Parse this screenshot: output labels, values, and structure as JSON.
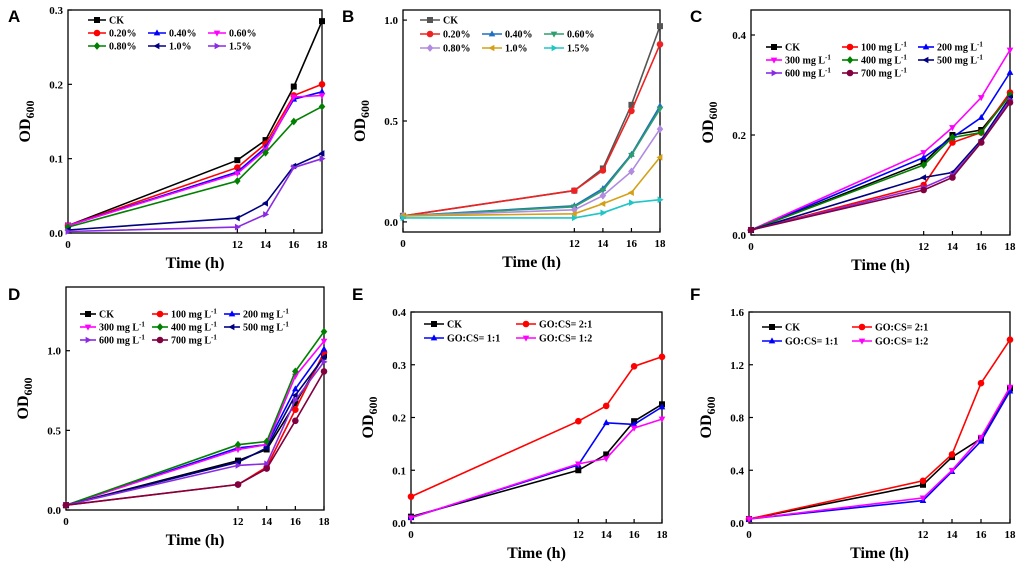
{
  "figure": {
    "panels": [
      {
        "label": "A",
        "chart_data": {
          "type": "line",
          "x": [
            0,
            12,
            14,
            16,
            18
          ],
          "xticks": [
            "0",
            "12",
            "14",
            "16",
            "18"
          ],
          "xlim": [
            0,
            18
          ],
          "ylim": [
            0,
            0.3
          ],
          "yticks": [
            0.0,
            0.1,
            0.2,
            0.3
          ],
          "ytick_labels": [
            "0.0",
            "0.1",
            "0.2",
            "0.3"
          ],
          "xlabel": "Time (h)",
          "ylabel_main": "OD",
          "ylabel_sub": "600",
          "legend_layout": [
            [
              0
            ],
            [
              1,
              2,
              3
            ],
            [
              4,
              5,
              6
            ]
          ],
          "series": [
            {
              "name": "CK",
              "color": "#000000",
              "marker": "square",
              "values": [
                0.01,
                0.098,
                0.125,
                0.197,
                0.285
              ]
            },
            {
              "name": "0.20%",
              "color": "#ff0000",
              "marker": "circle",
              "values": [
                0.01,
                0.088,
                0.12,
                0.185,
                0.2
              ]
            },
            {
              "name": "0.40%",
              "color": "#0000ff",
              "marker": "triangle-up",
              "values": [
                0.01,
                0.082,
                0.115,
                0.18,
                0.19
              ]
            },
            {
              "name": "0.60%",
              "color": "#ff00ff",
              "marker": "triangle-down",
              "values": [
                0.01,
                0.08,
                0.112,
                0.183,
                0.185
              ]
            },
            {
              "name": "0.80%",
              "color": "#008000",
              "marker": "diamond",
              "values": [
                0.008,
                0.07,
                0.108,
                0.15,
                0.17
              ]
            },
            {
              "name": "1.0%",
              "color": "#000080",
              "marker": "triangle-left",
              "values": [
                0.004,
                0.02,
                0.04,
                0.09,
                0.107
              ]
            },
            {
              "name": "1.5%",
              "color": "#8a2be2",
              "marker": "triangle-right",
              "values": [
                0.002,
                0.008,
                0.025,
                0.088,
                0.1
              ]
            }
          ]
        }
      },
      {
        "label": "B",
        "chart_data": {
          "type": "line",
          "x": [
            0,
            12,
            14,
            16,
            18
          ],
          "xticks": [
            "0",
            "12",
            "14",
            "16",
            "18"
          ],
          "xlim": [
            0,
            18
          ],
          "ylim": [
            -0.05,
            1.05
          ],
          "yticks": [
            0.0,
            0.5,
            1.0
          ],
          "ytick_labels": [
            "0.0",
            "0.5",
            "1.0"
          ],
          "xlabel": "Time (h)",
          "ylabel_main": "OD",
          "ylabel_sub": "600",
          "legend_layout": [
            [
              0
            ],
            [
              1,
              2,
              3
            ],
            [
              4,
              5,
              6
            ]
          ],
          "series": [
            {
              "name": "CK",
              "color": "#555555",
              "marker": "square",
              "values": [
                0.03,
                0.155,
                0.265,
                0.58,
                0.97
              ]
            },
            {
              "name": "0.20%",
              "color": "#ee2222",
              "marker": "circle",
              "values": [
                0.03,
                0.155,
                0.255,
                0.55,
                0.88
              ]
            },
            {
              "name": "0.40%",
              "color": "#1f6fbf",
              "marker": "triangle-up",
              "values": [
                0.03,
                0.08,
                0.165,
                0.335,
                0.575
              ]
            },
            {
              "name": "0.60%",
              "color": "#2e9e6e",
              "marker": "triangle-down",
              "values": [
                0.03,
                0.075,
                0.155,
                0.33,
                0.56
              ]
            },
            {
              "name": "0.80%",
              "color": "#b08be0",
              "marker": "diamond",
              "values": [
                0.03,
                0.06,
                0.13,
                0.25,
                0.46
              ]
            },
            {
              "name": "1.0%",
              "color": "#d4a017",
              "marker": "triangle-left",
              "values": [
                0.03,
                0.04,
                0.09,
                0.145,
                0.32
              ]
            },
            {
              "name": "1.5%",
              "color": "#20c5c5",
              "marker": "triangle-right",
              "values": [
                0.02,
                0.02,
                0.045,
                0.095,
                0.11
              ]
            }
          ]
        }
      },
      {
        "label": "C",
        "chart_data": {
          "type": "line",
          "x": [
            0,
            12,
            14,
            16,
            18
          ],
          "xticks": [
            "0",
            "12",
            "14",
            "16",
            "18"
          ],
          "xlim": [
            0,
            18
          ],
          "ylim": [
            0,
            0.45
          ],
          "yticks": [
            0.0,
            0.2,
            0.4
          ],
          "ytick_labels": [
            "0.0",
            "0.2",
            "0.4"
          ],
          "xlabel": "Time (h)",
          "ylabel_main": "OD",
          "ylabel_sub": "600",
          "legend_layout": [
            [
              0,
              1,
              2
            ],
            [
              3,
              4,
              5
            ],
            [
              6,
              7
            ]
          ],
          "series": [
            {
              "name": "CK",
              "color": "#000000",
              "marker": "square",
              "values": [
                0.01,
                0.145,
                0.2,
                0.21,
                0.28
              ]
            },
            {
              "name": "100 mg L-1",
              "color": "#ff0000",
              "marker": "circle",
              "values": [
                0.01,
                0.1,
                0.185,
                0.205,
                0.285
              ]
            },
            {
              "name": "200 mg L-1",
              "color": "#0000ff",
              "marker": "triangle-up",
              "values": [
                0.01,
                0.155,
                0.195,
                0.235,
                0.325
              ]
            },
            {
              "name": "300 mg L-1",
              "color": "#ff00ff",
              "marker": "triangle-down",
              "values": [
                0.01,
                0.165,
                0.215,
                0.275,
                0.37
              ]
            },
            {
              "name": "400 mg L-1",
              "color": "#008000",
              "marker": "diamond",
              "values": [
                0.01,
                0.14,
                0.195,
                0.205,
                0.28
              ]
            },
            {
              "name": "500 mg L-1",
              "color": "#000080",
              "marker": "triangle-left",
              "values": [
                0.01,
                0.115,
                0.125,
                0.19,
                0.275
              ]
            },
            {
              "name": "600 mg L-1",
              "color": "#8a2be2",
              "marker": "triangle-right",
              "values": [
                0.01,
                0.095,
                0.12,
                0.185,
                0.27
              ]
            },
            {
              "name": "700 mg L-1",
              "color": "#800040",
              "marker": "circle",
              "values": [
                0.01,
                0.09,
                0.115,
                0.185,
                0.265
              ]
            }
          ]
        }
      },
      {
        "label": "D",
        "chart_data": {
          "type": "line",
          "x": [
            0,
            12,
            14,
            16,
            18
          ],
          "xticks": [
            "0",
            "12",
            "14",
            "16",
            "18"
          ],
          "xlim": [
            0,
            18
          ],
          "ylim": [
            0,
            1.4
          ],
          "yticks": [
            0.0,
            0.5,
            1.0
          ],
          "ytick_labels": [
            "0.0",
            "0.5",
            "1.0"
          ],
          "xlabel": "Time (h)",
          "ylabel_main": "OD",
          "ylabel_sub": "600",
          "legend_layout": [
            [
              0,
              1,
              2
            ],
            [
              3,
              4,
              5
            ],
            [
              6,
              7
            ]
          ],
          "series": [
            {
              "name": "CK",
              "color": "#000000",
              "marker": "square",
              "values": [
                0.03,
                0.31,
                0.38,
                0.67,
                0.97
              ]
            },
            {
              "name": "100 mg L-1",
              "color": "#ff0000",
              "marker": "circle",
              "values": [
                0.03,
                0.16,
                0.27,
                0.63,
                0.99
              ]
            },
            {
              "name": "200 mg L-1",
              "color": "#0000ff",
              "marker": "triangle-up",
              "values": [
                0.03,
                0.39,
                0.41,
                0.76,
                1.01
              ]
            },
            {
              "name": "300 mg L-1",
              "color": "#ff00ff",
              "marker": "triangle-down",
              "values": [
                0.03,
                0.38,
                0.41,
                0.84,
                1.06
              ]
            },
            {
              "name": "400 mg L-1",
              "color": "#008000",
              "marker": "diamond",
              "values": [
                0.03,
                0.41,
                0.43,
                0.87,
                1.12
              ]
            },
            {
              "name": "500 mg L-1",
              "color": "#000080",
              "marker": "triangle-left",
              "values": [
                0.03,
                0.3,
                0.39,
                0.72,
                0.96
              ]
            },
            {
              "name": "600 mg L-1",
              "color": "#8a2be2",
              "marker": "triangle-right",
              "values": [
                0.03,
                0.28,
                0.29,
                0.69,
                0.93
              ]
            },
            {
              "name": "700 mg L-1",
              "color": "#800040",
              "marker": "circle",
              "values": [
                0.03,
                0.16,
                0.26,
                0.56,
                0.87
              ]
            }
          ]
        }
      },
      {
        "label": "E",
        "chart_data": {
          "type": "line",
          "x": [
            0,
            12,
            14,
            16,
            18
          ],
          "xticks": [
            "0",
            "12",
            "14",
            "16",
            "18"
          ],
          "xlim": [
            0,
            18
          ],
          "ylim": [
            0,
            0.4
          ],
          "yticks": [
            0.0,
            0.1,
            0.2,
            0.3,
            0.4
          ],
          "ytick_labels": [
            "0.0",
            "0.1",
            "0.2",
            "0.3",
            "0.4"
          ],
          "xlabel": "Time (h)",
          "ylabel_main": "OD",
          "ylabel_sub": "600",
          "legend_layout": [
            [
              0,
              1
            ],
            [
              2,
              3
            ]
          ],
          "series": [
            {
              "name": "CK",
              "color": "#000000",
              "marker": "square",
              "values": [
                0.012,
                0.1,
                0.13,
                0.193,
                0.225
              ]
            },
            {
              "name": "GO:CS= 2:1",
              "color": "#ff0000",
              "marker": "circle",
              "values": [
                0.05,
                0.193,
                0.222,
                0.297,
                0.315
              ]
            },
            {
              "name": "GO:CS= 1:1",
              "color": "#0000ff",
              "marker": "triangle-up",
              "values": [
                0.01,
                0.11,
                0.19,
                0.187,
                0.22
              ]
            },
            {
              "name": "GO:CS= 1:2",
              "color": "#ff00ff",
              "marker": "triangle-down",
              "values": [
                0.01,
                0.112,
                0.122,
                0.18,
                0.197
              ]
            }
          ]
        }
      },
      {
        "label": "F",
        "chart_data": {
          "type": "line",
          "x": [
            0,
            12,
            14,
            16,
            18
          ],
          "xticks": [
            "0",
            "12",
            "14",
            "16",
            "18"
          ],
          "xlim": [
            0,
            18
          ],
          "ylim": [
            0,
            1.6
          ],
          "yticks": [
            0.0,
            0.4,
            0.8,
            1.2,
            1.6
          ],
          "ytick_labels": [
            "0.0",
            "0.4",
            "0.8",
            "1.2",
            "1.6"
          ],
          "xlabel": "Time (h)",
          "ylabel_main": "OD",
          "ylabel_sub": "600",
          "legend_layout": [
            [
              0,
              1
            ],
            [
              2,
              3
            ]
          ],
          "series": [
            {
              "name": "CK",
              "color": "#000000",
              "marker": "square",
              "values": [
                0.03,
                0.29,
                0.5,
                0.64,
                1.02
              ]
            },
            {
              "name": "GO:CS= 2:1",
              "color": "#ff0000",
              "marker": "circle",
              "values": [
                0.03,
                0.32,
                0.52,
                1.06,
                1.39
              ]
            },
            {
              "name": "GO:CS= 1:1",
              "color": "#0000ff",
              "marker": "triangle-up",
              "values": [
                0.03,
                0.17,
                0.39,
                0.62,
                1.0
              ]
            },
            {
              "name": "GO:CS= 1:2",
              "color": "#ff00ff",
              "marker": "triangle-down",
              "values": [
                0.03,
                0.19,
                0.4,
                0.65,
                1.03
              ]
            }
          ]
        }
      }
    ]
  }
}
